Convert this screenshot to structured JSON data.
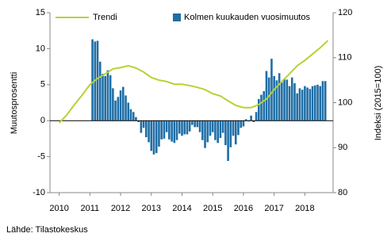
{
  "chart_data": {
    "type": "bar-line",
    "source": "Lähde: Tilastokeskus",
    "y_label": "Muutosprosentti",
    "y2_label": "Indeksi (2015=100)",
    "xlim": [
      2009.7,
      2018.92
    ],
    "xticks": [
      2010,
      2011,
      2012,
      2013,
      2014,
      2015,
      2016,
      2017,
      2018
    ],
    "ylim": [
      -10,
      15
    ],
    "yticks": [
      -10,
      -5,
      0,
      5,
      10,
      15
    ],
    "y2lim": [
      80,
      120
    ],
    "y2ticks": [
      80,
      90,
      100,
      110,
      120
    ],
    "series": [
      {
        "name": "Trendi",
        "type": "line",
        "axis": "y2",
        "color": "#b5d334",
        "x": [
          2010.0,
          2010.25,
          2010.5,
          2010.75,
          2011.0,
          2011.25,
          2011.5,
          2011.75,
          2012.0,
          2012.25,
          2012.5,
          2012.75,
          2013.0,
          2013.25,
          2013.5,
          2013.75,
          2014.0,
          2014.25,
          2014.5,
          2014.75,
          2015.0,
          2015.25,
          2015.5,
          2015.75,
          2016.0,
          2016.25,
          2016.5,
          2016.75,
          2017.0,
          2017.25,
          2017.5,
          2017.75,
          2018.0,
          2018.25,
          2018.5,
          2018.75
        ],
        "values": [
          95.5,
          97.3,
          99.6,
          101.7,
          104.0,
          105.4,
          106.4,
          107.5,
          107.8,
          108.2,
          107.7,
          106.8,
          105.6,
          105.0,
          104.7,
          104.1,
          104.1,
          103.8,
          103.4,
          102.9,
          102.0,
          101.5,
          100.4,
          99.4,
          98.9,
          98.9,
          99.6,
          100.8,
          102.9,
          104.7,
          106.4,
          108.2,
          109.4,
          110.8,
          112.2,
          113.8
        ]
      },
      {
        "name": "Kolmen kuukauden vuosimuutos",
        "type": "bar",
        "color": "#1f6ea6",
        "x": [
          2011.083,
          2011.167,
          2011.25,
          2011.333,
          2011.417,
          2011.5,
          2011.583,
          2011.667,
          2011.75,
          2011.833,
          2011.917,
          2012.0,
          2012.083,
          2012.167,
          2012.25,
          2012.333,
          2012.417,
          2012.5,
          2012.583,
          2012.667,
          2012.75,
          2012.833,
          2012.917,
          2013.0,
          2013.083,
          2013.167,
          2013.25,
          2013.333,
          2013.417,
          2013.5,
          2013.583,
          2013.667,
          2013.75,
          2013.833,
          2013.917,
          2014.0,
          2014.083,
          2014.167,
          2014.25,
          2014.333,
          2014.417,
          2014.5,
          2014.583,
          2014.667,
          2014.75,
          2014.833,
          2014.917,
          2015.0,
          2015.083,
          2015.167,
          2015.25,
          2015.333,
          2015.417,
          2015.5,
          2015.583,
          2015.667,
          2015.75,
          2015.833,
          2015.917,
          2016.0,
          2016.083,
          2016.167,
          2016.25,
          2016.333,
          2016.417,
          2016.5,
          2016.583,
          2016.667,
          2016.75,
          2016.833,
          2016.917,
          2017.0,
          2017.083,
          2017.167,
          2017.25,
          2017.333,
          2017.417,
          2017.5,
          2017.583,
          2017.667,
          2017.75,
          2017.833,
          2017.917,
          2018.0,
          2018.083,
          2018.167,
          2018.25,
          2018.333,
          2018.417,
          2018.5,
          2018.583,
          2018.667
        ],
        "values": [
          11.3,
          11.0,
          11.1,
          8.2,
          6.5,
          6.2,
          7.0,
          6.3,
          4.5,
          2.8,
          3.3,
          4.2,
          4.7,
          3.5,
          2.5,
          1.6,
          1.2,
          0.5,
          -0.2,
          -1.7,
          -1.0,
          -2.3,
          -3.0,
          -4.2,
          -4.7,
          -4.5,
          -3.6,
          -2.6,
          -2.5,
          -1.6,
          -2.6,
          -2.9,
          -3.1,
          -2.7,
          -1.8,
          -2.1,
          -1.9,
          -1.9,
          -1.5,
          -0.6,
          -0.9,
          -0.9,
          -1.6,
          -2.7,
          -3.8,
          -3.0,
          -2.1,
          -1.6,
          -2.7,
          -3.1,
          -2.4,
          -1.7,
          -3.4,
          -5.6,
          -3.7,
          -2.1,
          -3.3,
          -2.0,
          -1.0,
          -0.8,
          0.2,
          -0.1,
          0.7,
          -0.2,
          1.2,
          3.0,
          3.6,
          4.1,
          6.9,
          6.0,
          8.6,
          6.2,
          5.6,
          6.6,
          5.3,
          5.8,
          5.7,
          4.8,
          6.0,
          5.2,
          3.8,
          4.5,
          4.3,
          4.8,
          4.6,
          4.4,
          4.8,
          4.9,
          5.0,
          4.8,
          5.5,
          5.5
        ]
      }
    ]
  }
}
